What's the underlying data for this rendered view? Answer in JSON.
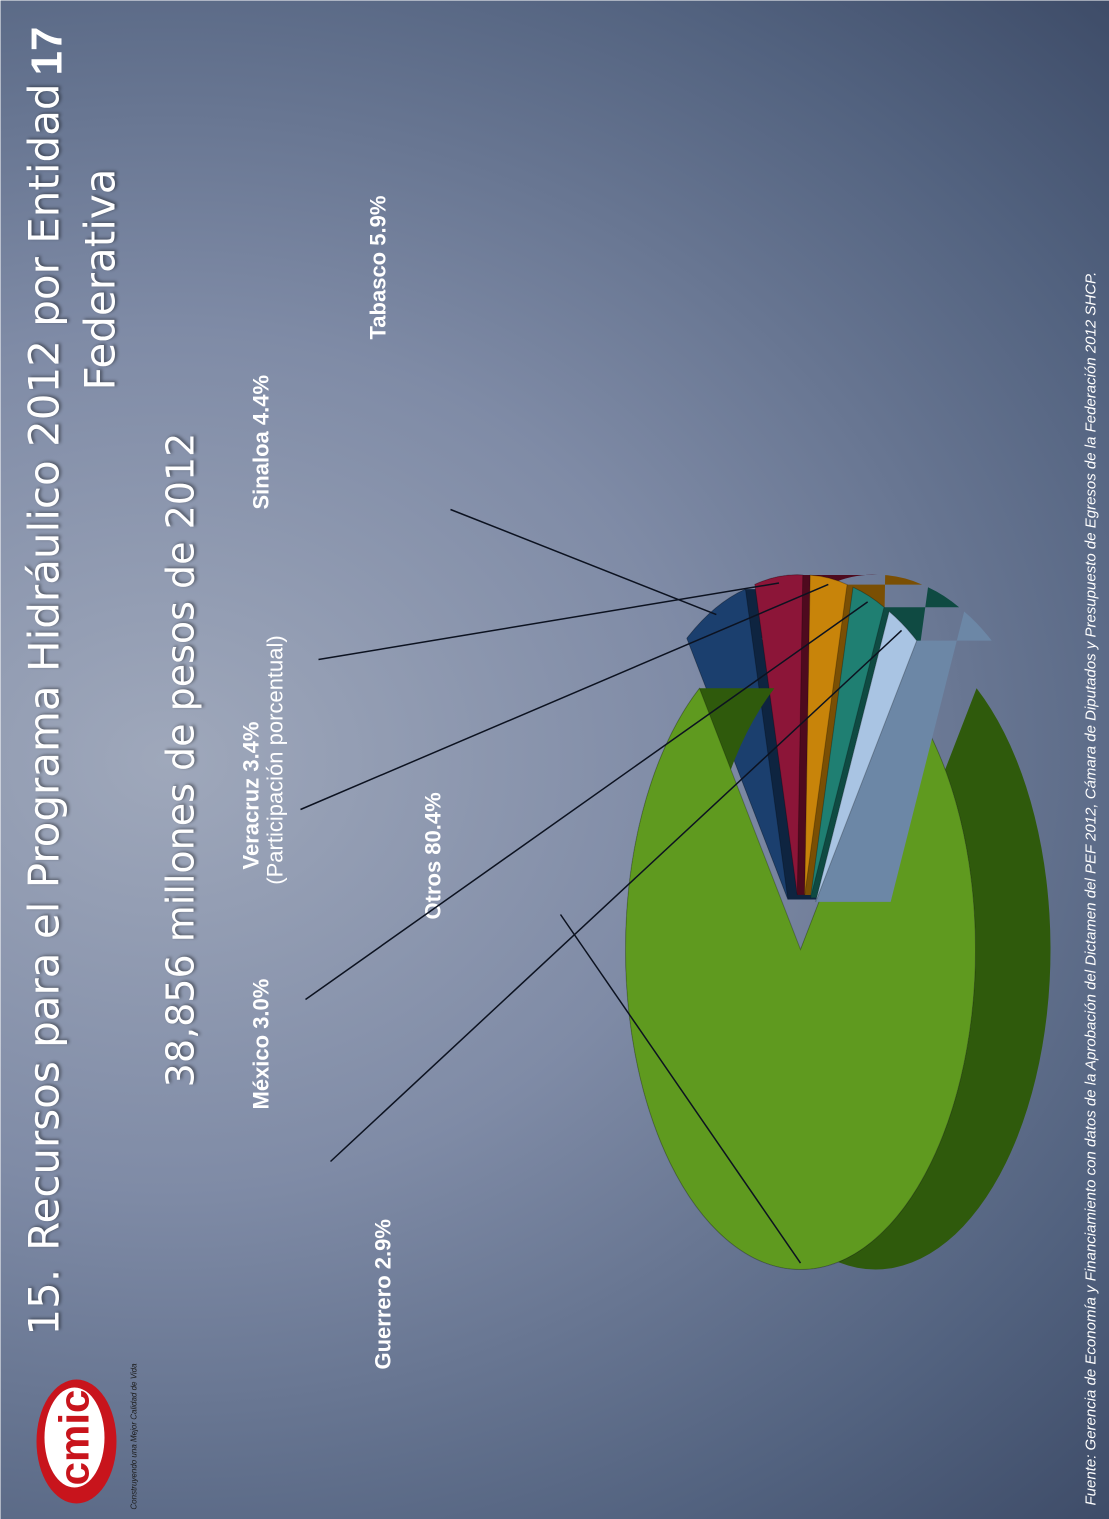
{
  "slide": {
    "title_number": "15.",
    "title_line1": "Recursos para el Programa Hidráulico 2012 por Entidad",
    "title_line2": "Federativa",
    "subtitle": "38,856 millones de pesos de 2012",
    "unit_note": "(Participación porcentual)",
    "page_number": "17",
    "source": "Fuente: Gerencia de Economía y Financiamiento con datos de la Aprobación del Dictamen del PEF 2012, Cámara de Diputados y Presupuesto de Egresos de la Federación 2012 SHCP.",
    "logo_text": "cmic",
    "logo_tagline": "Construyendo una Mejor Calidad de Vida"
  },
  "chart_data": {
    "type": "pie",
    "exploded": true,
    "style": "3d",
    "categories": [
      "Otros",
      "Tabasco",
      "Sinaloa",
      "Veracruz",
      "México",
      "Guerrero"
    ],
    "values": [
      80.4,
      5.9,
      4.4,
      3.4,
      3.0,
      2.9
    ],
    "data_labels": [
      "Otros 80.4%",
      "Tabasco 5.9%",
      "Sinaloa 4.4%",
      "Veracruz 3.4%",
      "México 3.0%",
      "Guerrero 2.9%"
    ],
    "colors": [
      "#5f9a1f",
      "#1b3f6e",
      "#8c1538",
      "#c8840a",
      "#1f7f72",
      "#a9c4e3"
    ],
    "side_colors": [
      "#2f5a0c",
      "#0e2440",
      "#4e0a1e",
      "#7a4f04",
      "#0f4a42",
      "#6c87a6"
    ],
    "title": "Recursos para el Programa Hidráulico 2012 por Entidad Federativa",
    "legend": "none"
  }
}
